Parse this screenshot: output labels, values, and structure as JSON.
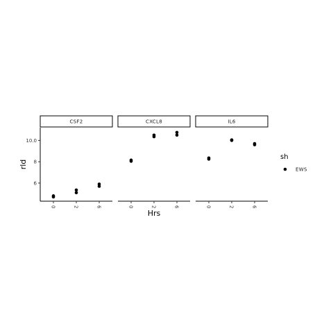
{
  "chart_data": {
    "type": "scatter",
    "xlabel": "Hrs",
    "ylabel": "rld",
    "x_categories": [
      "0",
      "2",
      "6"
    ],
    "y_ticks": [
      6,
      8,
      10
    ],
    "ylim": [
      4.3,
      11.2
    ],
    "facets": [
      {
        "name": "CSF2",
        "points": [
          {
            "x": "0",
            "y": 4.7
          },
          {
            "x": "0",
            "y": 4.8
          },
          {
            "x": "2",
            "y": 5.1
          },
          {
            "x": "2",
            "y": 5.35
          },
          {
            "x": "6",
            "y": 5.7
          },
          {
            "x": "6",
            "y": 5.9
          }
        ]
      },
      {
        "name": "CXCL8",
        "points": [
          {
            "x": "0",
            "y": 8.05
          },
          {
            "x": "0",
            "y": 8.15
          },
          {
            "x": "2",
            "y": 10.35
          },
          {
            "x": "2",
            "y": 10.5
          },
          {
            "x": "6",
            "y": 10.5
          },
          {
            "x": "6",
            "y": 10.75
          }
        ]
      },
      {
        "name": "IL6",
        "points": [
          {
            "x": "0",
            "y": 8.25
          },
          {
            "x": "0",
            "y": 8.35
          },
          {
            "x": "2",
            "y": 10.0
          },
          {
            "x": "2",
            "y": 10.05
          },
          {
            "x": "6",
            "y": 9.6
          },
          {
            "x": "6",
            "y": 9.7
          }
        ]
      }
    ],
    "legend": {
      "title": "sh",
      "items": [
        "EWS"
      ],
      "placement": "right"
    },
    "grid": false,
    "point_color": "#000000"
  }
}
